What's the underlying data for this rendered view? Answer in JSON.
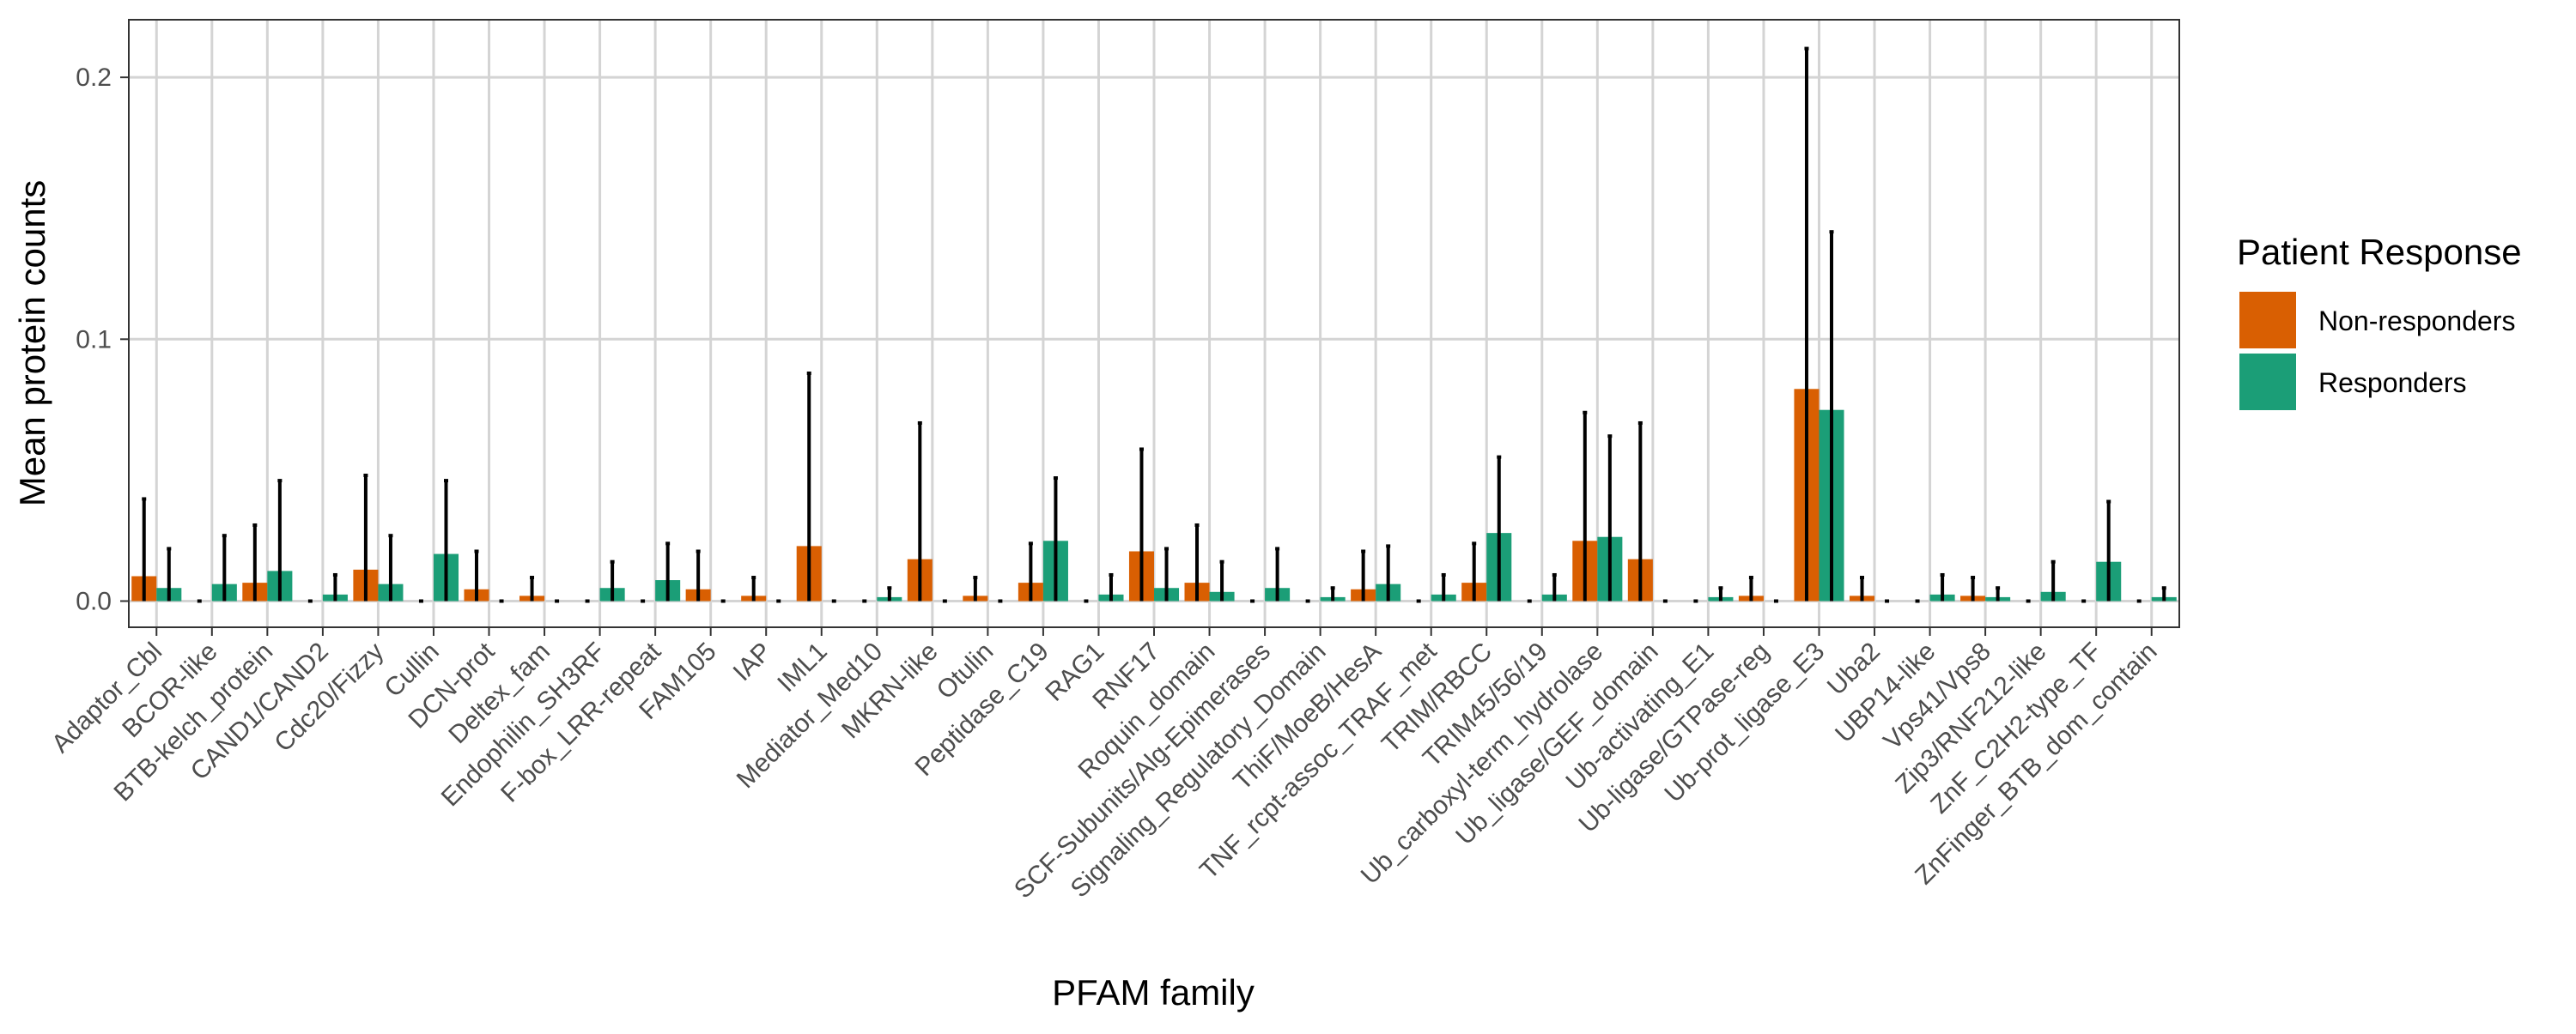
{
  "chart_data": {
    "type": "bar",
    "xlabel": "PFAM family",
    "ylabel": "Mean protein counts",
    "ylim": [
      -0.01,
      0.222
    ],
    "yticks": [
      0.0,
      0.1,
      0.2
    ],
    "ytick_labels": [
      "0.0",
      "0.1",
      "0.2"
    ],
    "grid": true,
    "legend": {
      "title": "Patient Response",
      "position": "right",
      "entries": [
        "Non-responders",
        "Responders"
      ]
    },
    "categories": [
      "Adaptor_Cbl",
      "BCOR-like",
      "BTB-kelch_protein",
      "CAND1/CAND2",
      "Cdc20/Fizzy",
      "Cullin",
      "DCN-prot",
      "Deltex_fam",
      "Endophilin_SH3RF",
      "F-box_LRR-repeat",
      "FAM105",
      "IAP",
      "IML1",
      "Mediator_Med10",
      "MKRN-like",
      "Otulin",
      "Peptidase_C19",
      "RAG1",
      "RNF17",
      "Roquin_domain",
      "SCF-Subunits/Alg-Epimerases",
      "Signaling_Regulatory_Domain",
      "ThiF/MoeB/HesA",
      "TNF_rcpt-assoc_TRAF_met",
      "TRIM/RBCC",
      "TRIM45/56/19",
      "Ub_carboxyl-term_hydrolase",
      "Ub_ligase/GEF_domain",
      "Ub-activating_E1",
      "Ub-ligase/GTPase-reg",
      "Ub-prot_ligase_E3",
      "Uba2",
      "UBP14-like",
      "Vps41/Vps8",
      "Zip3/RNF212-like",
      "ZnF_C2H2-type_TF",
      "ZnFinger_BTB_dom_contain"
    ],
    "series": [
      {
        "name": "Non-responders",
        "color": "#D95F02",
        "values": [
          0.0095,
          0.0,
          0.007,
          0.0,
          0.012,
          0.0,
          0.0045,
          0.002,
          0.0,
          0.0,
          0.0045,
          0.002,
          0.021,
          0.0,
          0.016,
          0.002,
          0.007,
          0.0,
          0.019,
          0.007,
          0.0,
          0.0,
          0.0045,
          0.0,
          0.007,
          0.0,
          0.023,
          0.016,
          0.0,
          0.002,
          0.081,
          0.002,
          0.0,
          0.002,
          0.0,
          0.0,
          0.0
        ],
        "error_upper": [
          0.039,
          0.0,
          0.029,
          0.0,
          0.048,
          0.0,
          0.019,
          0.009,
          0.0,
          0.0,
          0.019,
          0.009,
          0.087,
          0.0,
          0.068,
          0.009,
          0.022,
          0.0,
          0.058,
          0.029,
          0.0,
          0.0,
          0.019,
          0.0,
          0.022,
          0.0,
          0.072,
          0.068,
          0.0,
          0.009,
          0.211,
          0.009,
          0.0,
          0.009,
          0.0,
          0.0,
          0.0
        ]
      },
      {
        "name": "Responders",
        "color": "#1B9E77",
        "values": [
          0.005,
          0.0065,
          0.0115,
          0.0025,
          0.0065,
          0.018,
          0.0,
          0.0,
          0.005,
          0.008,
          0.0,
          0.0,
          0.0,
          0.0015,
          0.0,
          0.0,
          0.023,
          0.0025,
          0.005,
          0.0035,
          0.005,
          0.0015,
          0.0065,
          0.0025,
          0.026,
          0.0025,
          0.0245,
          0.0,
          0.0015,
          0.0,
          0.073,
          0.0,
          0.0025,
          0.0015,
          0.0035,
          0.015,
          0.0015
        ],
        "error_upper": [
          0.02,
          0.025,
          0.046,
          0.01,
          0.025,
          0.046,
          0.0,
          0.0,
          0.015,
          0.022,
          0.0,
          0.0,
          0.0,
          0.005,
          0.0,
          0.0,
          0.047,
          0.01,
          0.02,
          0.015,
          0.02,
          0.005,
          0.021,
          0.01,
          0.055,
          0.01,
          0.063,
          0.0,
          0.005,
          0.0,
          0.141,
          0.0,
          0.01,
          0.005,
          0.015,
          0.038,
          0.005
        ]
      }
    ]
  }
}
